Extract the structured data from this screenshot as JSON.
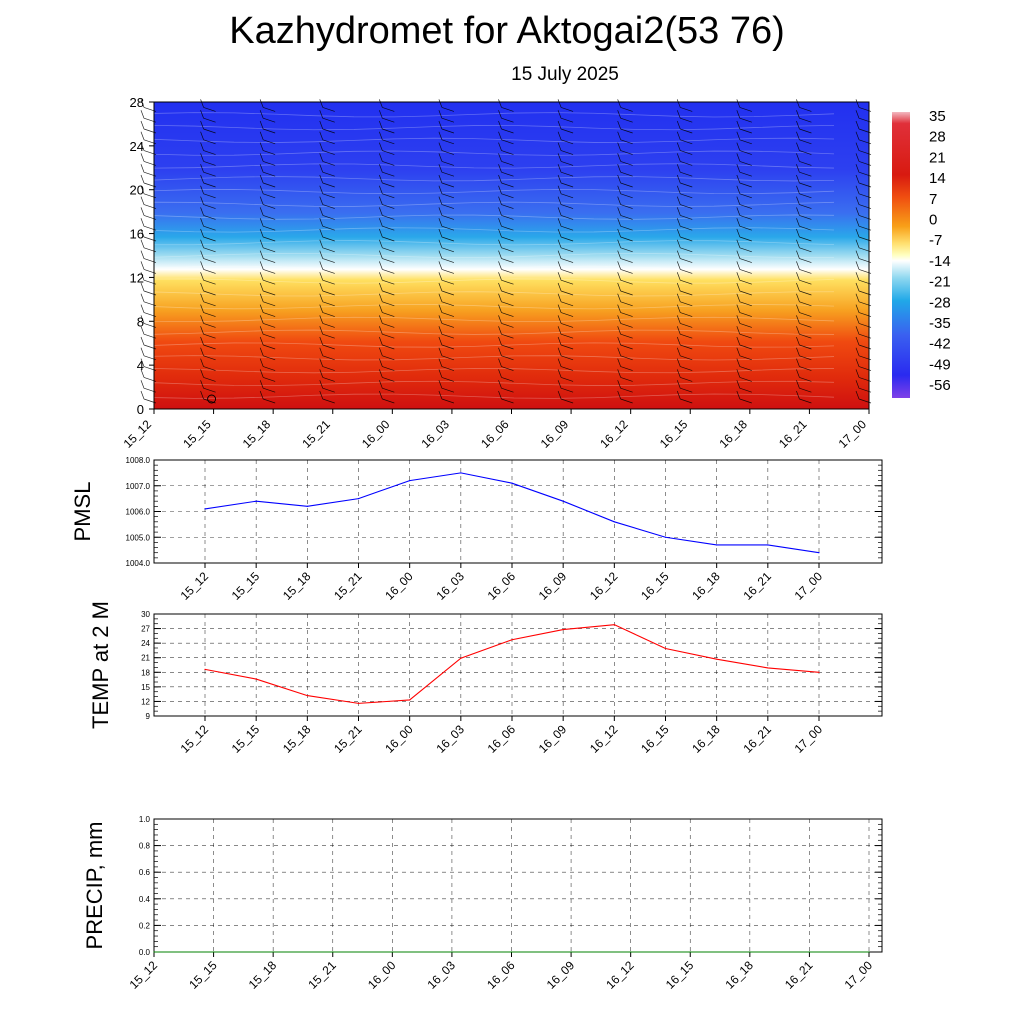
{
  "header": {
    "title": "Kazhydromet for Aktogai2(53 76)",
    "subtitle": "15 July 2025"
  },
  "colorbar": {
    "labels": [
      "35",
      "28",
      "21",
      "14",
      "7",
      "0",
      "-7",
      "-14",
      "-21",
      "-28",
      "-35",
      "-42",
      "-49",
      "-56"
    ]
  },
  "chart_data": [
    {
      "type": "heatmap",
      "title": "",
      "x": [
        "15_12",
        "15_15",
        "15_18",
        "15_21",
        "16_00",
        "16_03",
        "16_06",
        "16_09",
        "16_12",
        "16_15",
        "16_18",
        "16_21",
        "17_00"
      ],
      "y_ticks": [
        0,
        4,
        8,
        12,
        16,
        20,
        24,
        28
      ],
      "ylim": [
        0,
        28
      ],
      "colorbar_levels": [
        35,
        28,
        21,
        14,
        7,
        0,
        -7,
        -14,
        -21,
        -28,
        -35,
        -42,
        -49,
        -56
      ],
      "layers": [
        {
          "level": 0,
          "value": 16
        },
        {
          "level": 4,
          "value": 14
        },
        {
          "level": 8,
          "value": 9
        },
        {
          "level": 12,
          "value": -2
        },
        {
          "level": 13,
          "value": -14
        },
        {
          "level": 16,
          "value": -30
        },
        {
          "level": 20,
          "value": -48
        },
        {
          "level": 24,
          "value": -52
        },
        {
          "level": 28,
          "value": -55
        }
      ],
      "wind_barbs": true
    },
    {
      "type": "line",
      "ylabel": "PMSL",
      "x": [
        "15_12",
        "15_15",
        "15_18",
        "15_21",
        "16_00",
        "16_03",
        "16_06",
        "16_09",
        "16_12",
        "16_15",
        "16_18",
        "16_21",
        "17_00"
      ],
      "y_ticks": [
        "1004.0",
        "1005.0",
        "1006.0",
        "1007.0",
        "1008.0"
      ],
      "ylim": [
        1004,
        1008
      ],
      "series": [
        {
          "values": [
            1006.1,
            1006.4,
            1006.2,
            1006.5,
            1007.2,
            1007.5,
            1007.1,
            1006.4,
            1005.6,
            1005.0,
            1004.7,
            1004.7,
            1004.4
          ]
        }
      ],
      "color": "#0000ff",
      "grid": true
    },
    {
      "type": "line",
      "ylabel": "TEMP at 2 M",
      "x": [
        "15_12",
        "15_15",
        "15_18",
        "15_21",
        "16_00",
        "16_03",
        "16_06",
        "16_09",
        "16_12",
        "16_15",
        "16_18",
        "16_21",
        "17_00"
      ],
      "y_ticks": [
        "9",
        "12",
        "15",
        "18",
        "21",
        "24",
        "27",
        "30"
      ],
      "ylim": [
        9,
        30
      ],
      "series": [
        {
          "values": [
            18.6,
            16.6,
            13.2,
            11.6,
            12.3,
            20.9,
            24.7,
            26.8,
            27.8,
            22.9,
            20.7,
            18.9,
            18.0
          ]
        }
      ],
      "color": "#ff0000",
      "grid": true
    },
    {
      "type": "line",
      "ylabel": "PRECIP, mm",
      "x": [
        "15_12",
        "15_15",
        "15_18",
        "15_21",
        "16_00",
        "16_03",
        "16_06",
        "16_09",
        "16_12",
        "16_15",
        "16_18",
        "16_21",
        "17_00"
      ],
      "y_ticks": [
        "0.0",
        "0.2",
        "0.4",
        "0.6",
        "0.8",
        "1.0"
      ],
      "ylim": [
        0,
        1
      ],
      "series": [
        {
          "values": [
            0,
            0,
            0,
            0,
            0,
            0,
            0,
            0,
            0,
            0,
            0,
            0,
            0
          ]
        }
      ],
      "color": "#008000",
      "grid": true
    }
  ]
}
